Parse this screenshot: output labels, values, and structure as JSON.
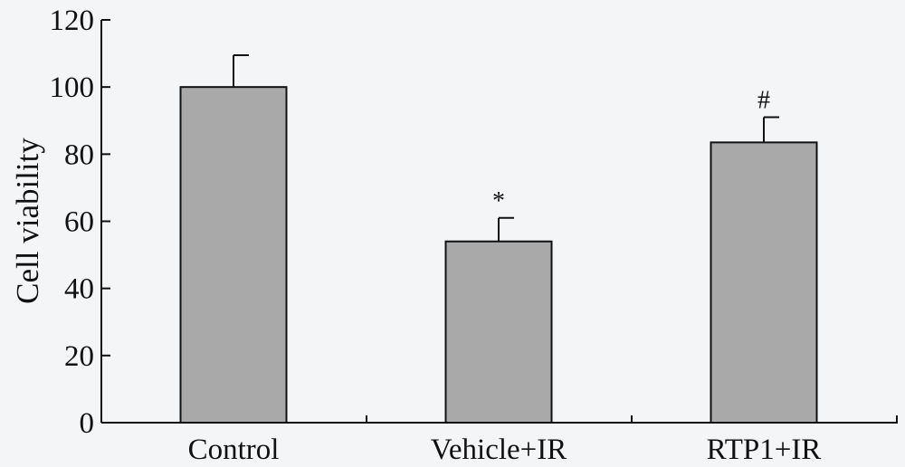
{
  "chart_data": {
    "type": "bar",
    "title": "",
    "xlabel": "",
    "ylabel": "Cell viability",
    "ylim": [
      0,
      120
    ],
    "yticks": [
      0,
      20,
      40,
      60,
      80,
      100,
      120
    ],
    "categories": [
      "Control",
      "Vehicle+IR",
      "RTP1+IR"
    ],
    "values": [
      100,
      54,
      83.5
    ],
    "error_bars": [
      9.5,
      7,
      7.5
    ],
    "annotations": [
      "",
      "*",
      "#"
    ],
    "grid": false,
    "colors": {
      "bar": "#a9a9a9",
      "outline": "#111111",
      "background": "#f4f5f7"
    }
  }
}
